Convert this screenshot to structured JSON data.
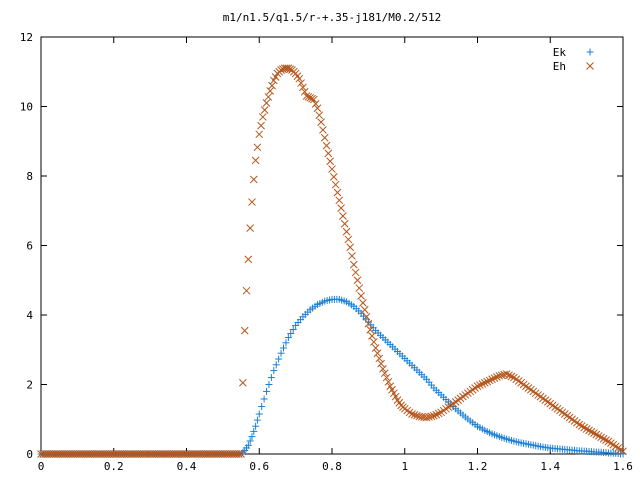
{
  "chart_data": {
    "type": "scatter",
    "title": "m1/n1.5/q1.5/r-+.35-j181/M0.2/512",
    "xlabel": "",
    "ylabel": "",
    "xlim": [
      0,
      1.6
    ],
    "ylim": [
      0,
      12
    ],
    "x_ticks": [
      0,
      0.2,
      0.4,
      0.6,
      0.8,
      1,
      1.2,
      1.4,
      1.6
    ],
    "x_tick_labels": [
      "0",
      "0.2",
      "0.4",
      "0.6",
      "0.8",
      "1",
      "1.2",
      "1.4",
      "1.6"
    ],
    "y_ticks": [
      0,
      2,
      4,
      6,
      8,
      10,
      12
    ],
    "y_tick_labels": [
      "0",
      "2",
      "4",
      "6",
      "8",
      "10",
      "12"
    ],
    "grid": false,
    "legend_position": "top-right",
    "series": [
      {
        "name": "Ek",
        "marker": "+",
        "color": "#1a7fd6",
        "points": [
          [
            0.0,
            0.0
          ],
          [
            0.1,
            0.0
          ],
          [
            0.2,
            0.0
          ],
          [
            0.3,
            0.0
          ],
          [
            0.4,
            0.0
          ],
          [
            0.5,
            0.0
          ],
          [
            0.55,
            0.0
          ],
          [
            0.56,
            0.1
          ],
          [
            0.57,
            0.25
          ],
          [
            0.58,
            0.5
          ],
          [
            0.59,
            0.8
          ],
          [
            0.6,
            1.15
          ],
          [
            0.62,
            1.8
          ],
          [
            0.64,
            2.4
          ],
          [
            0.66,
            2.9
          ],
          [
            0.68,
            3.35
          ],
          [
            0.7,
            3.7
          ],
          [
            0.72,
            3.95
          ],
          [
            0.74,
            4.15
          ],
          [
            0.76,
            4.3
          ],
          [
            0.78,
            4.4
          ],
          [
            0.8,
            4.45
          ],
          [
            0.82,
            4.45
          ],
          [
            0.84,
            4.38
          ],
          [
            0.86,
            4.25
          ],
          [
            0.88,
            4.05
          ],
          [
            0.9,
            3.8
          ],
          [
            0.92,
            3.55
          ],
          [
            0.94,
            3.35
          ],
          [
            0.96,
            3.15
          ],
          [
            0.98,
            2.95
          ],
          [
            1.0,
            2.75
          ],
          [
            1.02,
            2.55
          ],
          [
            1.04,
            2.35
          ],
          [
            1.06,
            2.15
          ],
          [
            1.08,
            1.9
          ],
          [
            1.1,
            1.7
          ],
          [
            1.12,
            1.5
          ],
          [
            1.14,
            1.3
          ],
          [
            1.16,
            1.12
          ],
          [
            1.18,
            0.95
          ],
          [
            1.2,
            0.8
          ],
          [
            1.22,
            0.68
          ],
          [
            1.24,
            0.58
          ],
          [
            1.26,
            0.5
          ],
          [
            1.28,
            0.43
          ],
          [
            1.3,
            0.37
          ],
          [
            1.32,
            0.32
          ],
          [
            1.34,
            0.28
          ],
          [
            1.36,
            0.24
          ],
          [
            1.38,
            0.2
          ],
          [
            1.4,
            0.17
          ],
          [
            1.42,
            0.15
          ],
          [
            1.44,
            0.13
          ],
          [
            1.46,
            0.11
          ],
          [
            1.48,
            0.09
          ],
          [
            1.5,
            0.08
          ],
          [
            1.52,
            0.06
          ],
          [
            1.54,
            0.05
          ],
          [
            1.56,
            0.03
          ],
          [
            1.58,
            0.02
          ],
          [
            1.6,
            0.0
          ]
        ]
      },
      {
        "name": "Eh",
        "marker": "x",
        "color": "#b5561c",
        "points": [
          [
            0.0,
            0.0
          ],
          [
            0.1,
            0.0
          ],
          [
            0.2,
            0.0
          ],
          [
            0.3,
            0.0
          ],
          [
            0.4,
            0.0
          ],
          [
            0.5,
            0.0
          ],
          [
            0.55,
            0.0
          ],
          [
            0.555,
            2.05
          ],
          [
            0.56,
            3.55
          ],
          [
            0.565,
            4.7
          ],
          [
            0.57,
            5.6
          ],
          [
            0.575,
            6.5
          ],
          [
            0.58,
            7.25
          ],
          [
            0.585,
            7.9
          ],
          [
            0.59,
            8.45
          ],
          [
            0.6,
            9.2
          ],
          [
            0.61,
            9.7
          ],
          [
            0.62,
            10.1
          ],
          [
            0.63,
            10.45
          ],
          [
            0.64,
            10.75
          ],
          [
            0.65,
            10.95
          ],
          [
            0.66,
            11.05
          ],
          [
            0.67,
            11.1
          ],
          [
            0.68,
            11.1
          ],
          [
            0.69,
            11.05
          ],
          [
            0.7,
            10.95
          ],
          [
            0.71,
            10.8
          ],
          [
            0.72,
            10.55
          ],
          [
            0.73,
            10.3
          ],
          [
            0.74,
            10.25
          ],
          [
            0.75,
            10.2
          ],
          [
            0.76,
            9.95
          ],
          [
            0.77,
            9.55
          ],
          [
            0.78,
            9.1
          ],
          [
            0.79,
            8.65
          ],
          [
            0.8,
            8.2
          ],
          [
            0.81,
            7.75
          ],
          [
            0.82,
            7.3
          ],
          [
            0.83,
            6.85
          ],
          [
            0.84,
            6.4
          ],
          [
            0.85,
            5.95
          ],
          [
            0.86,
            5.45
          ],
          [
            0.87,
            5.0
          ],
          [
            0.88,
            4.55
          ],
          [
            0.89,
            4.15
          ],
          [
            0.9,
            3.75
          ],
          [
            0.91,
            3.4
          ],
          [
            0.92,
            3.05
          ],
          [
            0.93,
            2.75
          ],
          [
            0.94,
            2.45
          ],
          [
            0.95,
            2.2
          ],
          [
            0.96,
            1.95
          ],
          [
            0.97,
            1.75
          ],
          [
            0.98,
            1.55
          ],
          [
            0.99,
            1.4
          ],
          [
            1.0,
            1.3
          ],
          [
            1.02,
            1.15
          ],
          [
            1.04,
            1.08
          ],
          [
            1.06,
            1.05
          ],
          [
            1.08,
            1.1
          ],
          [
            1.1,
            1.2
          ],
          [
            1.12,
            1.35
          ],
          [
            1.14,
            1.5
          ],
          [
            1.16,
            1.65
          ],
          [
            1.18,
            1.8
          ],
          [
            1.2,
            1.95
          ],
          [
            1.22,
            2.05
          ],
          [
            1.24,
            2.15
          ],
          [
            1.26,
            2.25
          ],
          [
            1.28,
            2.3
          ],
          [
            1.3,
            2.2
          ],
          [
            1.32,
            2.05
          ],
          [
            1.34,
            1.9
          ],
          [
            1.36,
            1.75
          ],
          [
            1.38,
            1.6
          ],
          [
            1.4,
            1.45
          ],
          [
            1.42,
            1.3
          ],
          [
            1.44,
            1.15
          ],
          [
            1.46,
            1.0
          ],
          [
            1.48,
            0.85
          ],
          [
            1.5,
            0.72
          ],
          [
            1.52,
            0.6
          ],
          [
            1.54,
            0.48
          ],
          [
            1.56,
            0.36
          ],
          [
            1.58,
            0.22
          ],
          [
            1.6,
            0.08
          ]
        ]
      }
    ]
  }
}
